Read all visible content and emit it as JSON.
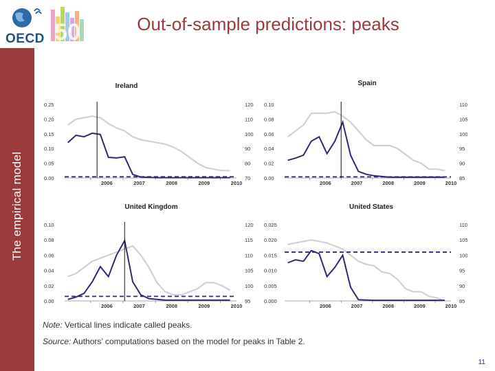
{
  "header": {
    "logo_text": "OECD",
    "logo_number": "50",
    "title": "Out-of-sample predictions: peaks"
  },
  "sidebar": {
    "label": "The empirical model"
  },
  "notes": {
    "note_label": "Note:",
    "note_text": " Vertical lines indicate called peaks.",
    "source_label": "Source:",
    "source_text": " Authors’ computations based on the model for peaks in Table 2."
  },
  "page_number": "11",
  "colors": {
    "accent": "#9b3a3a",
    "dark_series": "#2b2a72",
    "light_series": "#cfcfdc",
    "page_number": "#1f3a93"
  },
  "chart_data": [
    {
      "type": "line",
      "title": "Ireland",
      "x_ticks": [
        "2006",
        "2007",
        "2008",
        "2009",
        "2010"
      ],
      "left_axis": {
        "ylim": [
          0,
          0.25
        ],
        "ticks": [
          "0.00",
          "0.05",
          "0.10",
          "0.15",
          "0.20",
          "0.25"
        ]
      },
      "right_axis": {
        "ylim": [
          70,
          120
        ],
        "ticks": [
          "70",
          "80",
          "90",
          "100",
          "110",
          "120"
        ]
      },
      "series": [
        {
          "axis": "left",
          "style": "dark",
          "x": [
            2005.3,
            2005.55,
            2005.8,
            2006.05,
            2006.3,
            2006.55,
            2006.8,
            2007.05,
            2007.3,
            2007.55,
            2007.8,
            2008.05,
            2008.3,
            2008.55,
            2008.8,
            2009.05,
            2009.3,
            2009.55,
            2009.8,
            2010.05,
            2010.3
          ],
          "values": [
            0.12,
            0.145,
            0.14,
            0.152,
            0.148,
            0.07,
            0.068,
            0.072,
            0.012,
            0.003,
            0.002,
            0.001,
            0.001,
            0.001,
            0.001,
            0.001,
            0.001,
            0.001,
            0.001,
            0.001,
            0.001
          ]
        },
        {
          "axis": "right",
          "style": "light",
          "x": [
            2005.3,
            2005.55,
            2005.8,
            2006.05,
            2006.3,
            2006.55,
            2006.8,
            2007.05,
            2007.3,
            2007.55,
            2007.8,
            2008.05,
            2008.3,
            2008.55,
            2008.8,
            2009.05,
            2009.3,
            2009.55,
            2009.8,
            2010.05,
            2010.3
          ],
          "values": [
            106,
            110,
            111,
            112,
            111,
            107,
            104,
            102,
            98,
            96,
            95,
            94,
            93,
            91,
            88,
            84,
            80,
            77,
            76,
            75,
            75
          ]
        }
      ],
      "threshold": {
        "axis": "left",
        "value": 0.004
      },
      "called_peaks": [
        2006.2
      ]
    },
    {
      "type": "line",
      "title": "Spain",
      "x_ticks": [
        "2006",
        "2007",
        "2008",
        "2009",
        "2010"
      ],
      "left_axis": {
        "ylim": [
          0,
          0.1
        ],
        "ticks": [
          "0.00",
          "0.02",
          "0.04",
          "0.06",
          "0.08",
          "0.10"
        ]
      },
      "right_axis": {
        "ylim": [
          85,
          110
        ],
        "ticks": [
          "85",
          "90",
          "95",
          "100",
          "105",
          "110"
        ]
      },
      "series": [
        {
          "axis": "left",
          "style": "dark",
          "x": [
            2005.3,
            2005.55,
            2005.8,
            2006.05,
            2006.3,
            2006.55,
            2006.8,
            2007.05,
            2007.3,
            2007.55,
            2007.8,
            2008.05,
            2008.3,
            2008.55,
            2008.8,
            2009.05,
            2009.3,
            2009.55,
            2009.8,
            2010.05,
            2010.3
          ],
          "values": [
            0.024,
            0.027,
            0.031,
            0.05,
            0.056,
            0.033,
            0.05,
            0.076,
            0.031,
            0.009,
            0.005,
            0.003,
            0.002,
            0.001,
            0.001,
            0.001,
            0.001,
            0.001,
            0.001,
            0.001,
            0.001
          ]
        },
        {
          "axis": "right",
          "style": "light",
          "x": [
            2005.3,
            2005.55,
            2005.8,
            2006.05,
            2006.3,
            2006.55,
            2006.8,
            2007.05,
            2007.3,
            2007.55,
            2007.8,
            2008.05,
            2008.3,
            2008.55,
            2008.8,
            2009.05,
            2009.3,
            2009.55,
            2009.8,
            2010.05,
            2010.3
          ],
          "values": [
            99,
            101,
            103,
            107,
            107,
            107,
            107.5,
            106,
            104,
            101,
            98,
            96,
            96,
            96,
            95,
            93,
            91,
            90,
            88,
            88,
            87.5
          ]
        }
      ],
      "threshold": {
        "axis": "left",
        "value": 0.0015
      },
      "called_peaks": [
        2007.0
      ]
    },
    {
      "type": "line",
      "title": "United Kingdom",
      "x_ticks": [
        "2006",
        "2007",
        "2008",
        "2009",
        "2010"
      ],
      "left_axis": {
        "ylim": [
          0,
          0.1
        ],
        "ticks": [
          "0.00",
          "0.02",
          "0.04",
          "0.06",
          "0.08",
          "0.10"
        ]
      },
      "right_axis": {
        "ylim": [
          95,
          120
        ],
        "ticks": [
          "95",
          "100",
          "105",
          "110",
          "115",
          "120"
        ]
      },
      "series": [
        {
          "axis": "left",
          "style": "dark",
          "x": [
            2005.3,
            2005.55,
            2005.8,
            2006.05,
            2006.3,
            2006.55,
            2006.8,
            2007.05,
            2007.3,
            2007.55,
            2007.8,
            2008.05,
            2008.3,
            2008.55,
            2008.8,
            2009.05,
            2009.3,
            2009.55,
            2009.8,
            2010.05,
            2010.3
          ],
          "values": [
            0.002,
            0.005,
            0.01,
            0.025,
            0.045,
            0.032,
            0.06,
            0.079,
            0.025,
            0.008,
            0.003,
            0.002,
            0.001,
            0.001,
            0.001,
            0.001,
            0.001,
            0.001,
            0.001,
            0.001,
            0.001
          ]
        },
        {
          "axis": "right",
          "style": "light",
          "x": [
            2005.3,
            2005.55,
            2005.8,
            2006.05,
            2006.3,
            2006.55,
            2006.8,
            2007.05,
            2007.3,
            2007.55,
            2007.8,
            2008.05,
            2008.3,
            2008.55,
            2008.8,
            2009.05,
            2009.3,
            2009.55,
            2009.8,
            2010.05,
            2010.3
          ],
          "values": [
            103,
            104,
            106,
            108,
            109,
            110,
            111,
            112,
            113,
            110,
            106,
            101,
            98,
            97,
            97,
            98,
            99,
            101,
            101,
            100,
            98.5
          ]
        }
      ],
      "threshold": {
        "axis": "left",
        "value": 0.006
      },
      "called_peaks": [
        2007.05
      ]
    },
    {
      "type": "line",
      "title": "United States",
      "x_ticks": [
        "2006",
        "2007",
        "2008",
        "2009",
        "2010"
      ],
      "left_axis": {
        "ylim": [
          0,
          0.025
        ],
        "ticks": [
          "0.000",
          "0.005",
          "0.010",
          "0.015",
          "0.020",
          "0.025"
        ]
      },
      "right_axis": {
        "ylim": [
          85,
          110
        ],
        "ticks": [
          "85",
          "90",
          "95",
          "100",
          "105",
          "110"
        ]
      },
      "series": [
        {
          "axis": "left",
          "style": "dark",
          "x": [
            2005.3,
            2005.55,
            2005.8,
            2006.05,
            2006.3,
            2006.55,
            2006.8,
            2007.05,
            2007.3,
            2007.55,
            2007.8,
            2008.05,
            2008.3,
            2008.55,
            2008.8,
            2009.05,
            2009.3,
            2009.55,
            2009.8,
            2010.05,
            2010.3
          ],
          "values": [
            0.0125,
            0.0135,
            0.013,
            0.0165,
            0.0155,
            0.008,
            0.011,
            0.015,
            0.0045,
            0.0004,
            0.0003,
            0.0002,
            0.0002,
            0.0002,
            0.0002,
            0.0002,
            0.0002,
            0.0002,
            0.0002,
            0.0002,
            0.0002
          ]
        },
        {
          "axis": "right",
          "style": "light",
          "x": [
            2005.3,
            2005.55,
            2005.8,
            2006.05,
            2006.3,
            2006.55,
            2006.8,
            2007.05,
            2007.3,
            2007.55,
            2007.8,
            2008.05,
            2008.3,
            2008.55,
            2008.8,
            2009.05,
            2009.3,
            2009.55,
            2009.8,
            2010.05,
            2010.3
          ],
          "values": [
            103.5,
            104,
            104.5,
            105,
            104.5,
            104,
            103,
            102,
            100,
            98,
            97,
            96.5,
            94.5,
            94,
            92,
            89,
            88,
            88,
            86.5,
            86,
            85
          ]
        }
      ],
      "threshold": {
        "axis": "left",
        "value": 0.016
      },
      "called_peaks": []
    }
  ]
}
